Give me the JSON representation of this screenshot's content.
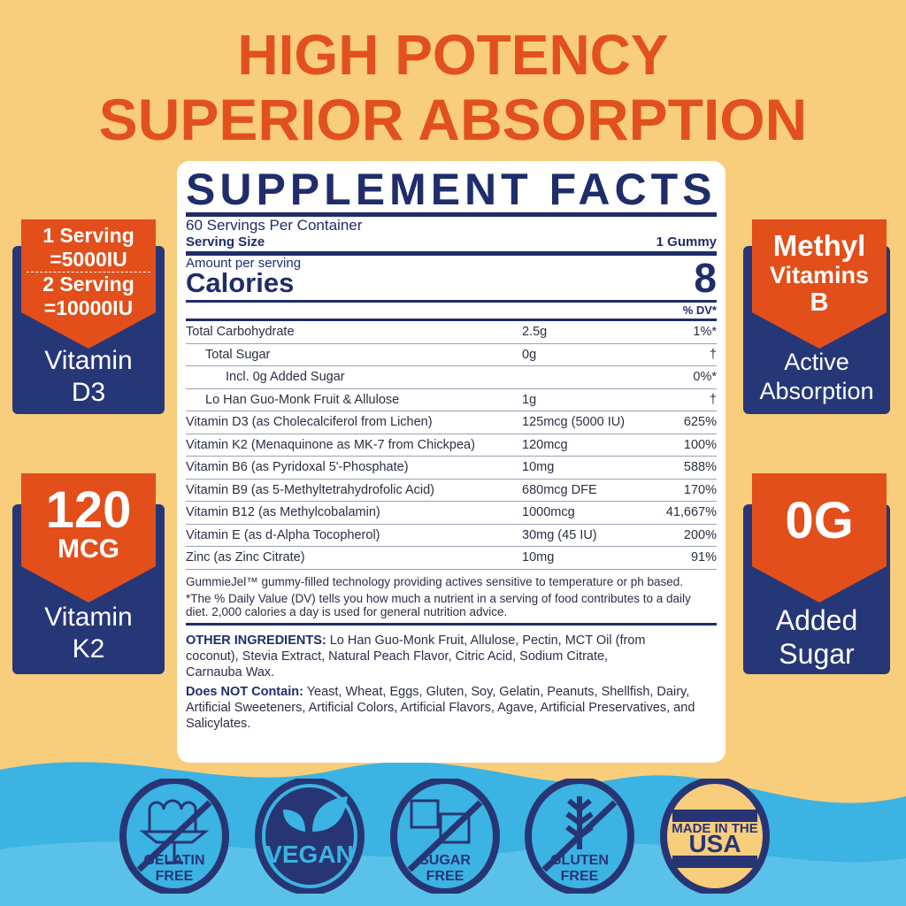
{
  "headline": {
    "line1": "HIGH POTENCY",
    "line2": "SUPERIOR ABSORPTION"
  },
  "colors": {
    "background": "#f8cd7c",
    "accent_orange": "#e2511d",
    "navy": "#1f2d6a",
    "wave_blue": "#3bb3e3"
  },
  "label": {
    "title": "SUPPLEMENT FACTS",
    "servings_per_container": "60 Servings Per Container",
    "serving_size_label": "Serving Size",
    "serving_size_value": "1 Gummy",
    "amount_per_serving": "Amount per serving",
    "calories_label": "Calories",
    "calories_value": "8",
    "dv_header": "% DV*",
    "rows": [
      {
        "name": "Total Carbohydrate",
        "amount": "2.5g",
        "dv": "1%*",
        "indent": 0
      },
      {
        "name": "Total Sugar",
        "amount": "0g",
        "dv": "†",
        "indent": 1
      },
      {
        "name": "Incl. 0g Added Sugar",
        "amount": "",
        "dv": "0%*",
        "indent": 2
      },
      {
        "name": "Lo Han Guo-Monk Fruit & Allulose",
        "amount": "1g",
        "dv": "†",
        "indent": 1
      },
      {
        "name": "Vitamin D3 (as Cholecalciferol from Lichen)",
        "amount": "125mcg (5000 IU)",
        "dv": "625%",
        "indent": 0
      },
      {
        "name": "Vitamin K2 (Menaquinone as MK-7 from Chickpea)",
        "amount": "120mcg",
        "dv": "100%",
        "indent": 0
      },
      {
        "name": "Vitamin B6 (as Pyridoxal 5'-Phosphate)",
        "amount": "10mg",
        "dv": "588%",
        "indent": 0
      },
      {
        "name": "Vitamin B9 (as 5-Methyltetrahydrofolic Acid)",
        "amount": "680mcg DFE",
        "dv": "170%",
        "indent": 0
      },
      {
        "name": "Vitamin B12 (as Methylcobalamin)",
        "amount": "1000mcg",
        "dv": "41,667%",
        "indent": 0
      },
      {
        "name": "Vitamin E (as d-Alpha Tocopherol)",
        "amount": "30mg (45 IU)",
        "dv": "200%",
        "indent": 0
      },
      {
        "name": "Zinc (as Zinc Citrate)",
        "amount": "10mg",
        "dv": "91%",
        "indent": 0
      }
    ],
    "footnote1": "GummieJel™ gummy-filled technology providing actives sensitive to temperature or ph based.",
    "footnote2": "*The % Daily Value (DV) tells you how much a nutrient in a serving of food contributes to a daily diet. 2,000 calories a day is used for general nutrition advice.",
    "other_ingredients_label": "OTHER INGREDIENTS:",
    "other_ingredients": " Lo Han Guo-Monk Fruit, Allulose, Pectin, MCT Oil (from coconut), Stevia Extract, Natural Peach Flavor, Citric Acid, Sodium Citrate, Carnauba Wax.",
    "does_not_contain_label": "Does NOT Contain:",
    "does_not_contain": " Yeast, Wheat, Eggs, Gluten, Soy, Gelatin, Peanuts, Shellfish, Dairy, Artificial Sweeteners, Artificial Colors, Artificial Flavors, Agave, Artificial Preservatives, and Salicylates."
  },
  "badges": {
    "d3": {
      "l1": "1 Serving",
      "l2": "=5000IU",
      "l3": "2 Serving",
      "l4": "=10000IU",
      "b1": "Vitamin",
      "b2": "D3"
    },
    "k2": {
      "num": "120",
      "unit": "MCG",
      "b1": "Vitamin",
      "b2": "K2"
    },
    "methyl": {
      "l1": "Methyl",
      "l2": "Vitamins",
      "l3": "B",
      "b1": "Active",
      "b2": "Absorption"
    },
    "sugar": {
      "num": "0G",
      "b1": "Added",
      "b2": "Sugar"
    }
  },
  "icons": [
    {
      "icon": "gelatin-free-icon",
      "l1": "GELATIN",
      "l2": "FREE"
    },
    {
      "icon": "vegan-leaf-icon",
      "l1": "VEGAN",
      "l2": ""
    },
    {
      "icon": "sugar-free-icon",
      "l1": "SUGAR",
      "l2": "FREE"
    },
    {
      "icon": "gluten-free-wheat-icon",
      "l1": "GLUTEN",
      "l2": "FREE"
    },
    {
      "icon": "made-in-usa-icon",
      "l1": "MADE IN THE",
      "l2": "USA"
    }
  ]
}
